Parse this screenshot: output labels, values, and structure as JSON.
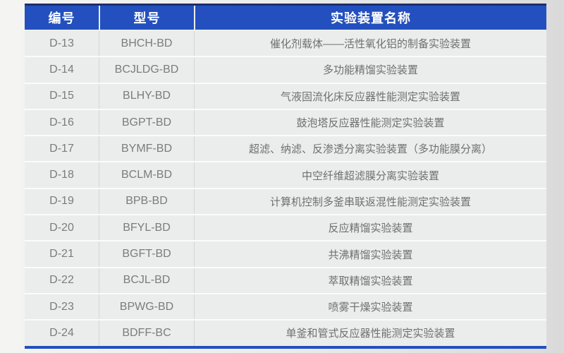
{
  "table": {
    "columns": [
      {
        "key": "id",
        "label": "编号"
      },
      {
        "key": "model",
        "label": "型号"
      },
      {
        "key": "name",
        "label": "实验装置名称"
      }
    ],
    "rows": [
      {
        "id": "D-13",
        "model": "BHCH-BD",
        "name": "催化剂载体——活性氧化铝的制备实验装置"
      },
      {
        "id": "D-14",
        "model": "BCJLDG-BD",
        "name": "多功能精馏实验装置"
      },
      {
        "id": "D-15",
        "model": "BLHY-BD",
        "name": "气液固流化床反应器性能测定实验装置"
      },
      {
        "id": "D-16",
        "model": "BGPT-BD",
        "name": "鼓泡塔反应器性能测定实验装置"
      },
      {
        "id": "D-17",
        "model": "BYMF-BD",
        "name": "超滤、纳滤、反渗透分离实验装置（多功能膜分离）"
      },
      {
        "id": "D-18",
        "model": "BCLM-BD",
        "name": "中空纤维超滤膜分离实验装置"
      },
      {
        "id": "D-19",
        "model": "BPB-BD",
        "name": "计算机控制多釜串联返混性能测定实验装置"
      },
      {
        "id": "D-20",
        "model": "BFYL-BD",
        "name": "反应精馏实验装置"
      },
      {
        "id": "D-21",
        "model": "BGFT-BD",
        "name": "共沸精馏实验装置"
      },
      {
        "id": "D-22",
        "model": "BCJL-BD",
        "name": "萃取精馏实验装置"
      },
      {
        "id": "D-23",
        "model": "BPWG-BD",
        "name": "喷雾干燥实验装置"
      },
      {
        "id": "D-24",
        "model": "BDFF-BC",
        "name": "单釜和管式反应器性能测定实验装置"
      }
    ],
    "colors": {
      "header_bg": "#2350be",
      "header_text": "#ffffff",
      "header_top_border": "#1c2e6e",
      "row_bg": "#ebedec",
      "row_divider": "#fafbfa",
      "cell_border": "#d4d6d5",
      "body_text": "#6f6f6f",
      "bottom_bar": "#2350be"
    }
  }
}
